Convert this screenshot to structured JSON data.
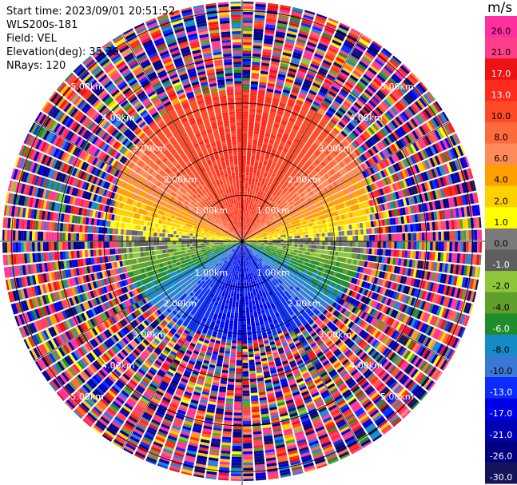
{
  "header": {
    "start_time": "Start time: 2023/09/01 20:51:52",
    "instrument": "WLS200s-181",
    "field": "Field: VEL",
    "elevation": "Elevation(deg): 35.30",
    "nrays": "NRays: 120"
  },
  "chart_data": {
    "type": "ppi-scan",
    "field": "VEL",
    "unit": "m/s",
    "elevation_deg": 35.3,
    "nrays": 120,
    "range_rings_km": [
      1.0,
      2.0,
      3.0,
      4.0,
      5.0
    ],
    "range_ring_labels": [
      "1.00km",
      "2.00km",
      "3.00km",
      "4.00km",
      "5.00km"
    ],
    "azimuth_lines_deg": [
      0,
      30,
      60,
      90,
      120,
      150,
      180,
      210,
      240,
      270,
      300,
      330
    ],
    "max_range_km": 5.2,
    "colorbar": {
      "tick_labels": [
        "26.0",
        "21.0",
        "17.0",
        "13.0",
        "10.0",
        "8.0",
        "6.0",
        "4.0",
        "2.0",
        "1.0",
        "0.0",
        "-1.0",
        "-2.0",
        "-4.0",
        "-6.0",
        "-8.0",
        "-10.0",
        "-13.0",
        "-17.0",
        "-21.0",
        "-26.0",
        "-30.0"
      ],
      "bins": [
        {
          "lo": 26,
          "hi": 30,
          "color": "#ff2fa0"
        },
        {
          "lo": 21,
          "hi": 26,
          "color": "#ff3f8a"
        },
        {
          "lo": 17,
          "hi": 21,
          "color": "#ee1313"
        },
        {
          "lo": 13,
          "hi": 17,
          "color": "#ff2a1e"
        },
        {
          "lo": 10,
          "hi": 13,
          "color": "#ff4a26"
        },
        {
          "lo": 8,
          "hi": 10,
          "color": "#ff6a3c"
        },
        {
          "lo": 6,
          "hi": 8,
          "color": "#ff8a5a"
        },
        {
          "lo": 4,
          "hi": 6,
          "color": "#ffa000"
        },
        {
          "lo": 2,
          "hi": 4,
          "color": "#ffd000"
        },
        {
          "lo": 1,
          "hi": 2,
          "color": "#ffff00"
        },
        {
          "lo": 0,
          "hi": 1,
          "color": "#7a7a7a"
        },
        {
          "lo": -1,
          "hi": 0,
          "color": "#5e5e5e"
        },
        {
          "lo": -2,
          "hi": -1,
          "color": "#8ec63a"
        },
        {
          "lo": -4,
          "hi": -2,
          "color": "#5f9f2a"
        },
        {
          "lo": -6,
          "hi": -4,
          "color": "#1f8c2c"
        },
        {
          "lo": -8,
          "hi": -6,
          "color": "#178ac8"
        },
        {
          "lo": -10,
          "hi": -8,
          "color": "#3a78d6"
        },
        {
          "lo": -13,
          "hi": -10,
          "color": "#0a2cff"
        },
        {
          "lo": -17,
          "hi": -13,
          "color": "#0000e6"
        },
        {
          "lo": -21,
          "hi": -17,
          "color": "#0000b4"
        },
        {
          "lo": -26,
          "hi": -21,
          "color": "#000080"
        },
        {
          "lo": -30,
          "hi": -26,
          "color": "#14145a"
        }
      ]
    }
  }
}
